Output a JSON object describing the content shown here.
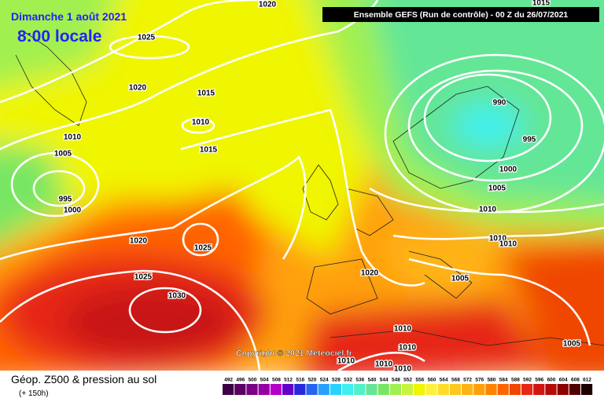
{
  "header": {
    "date": "Dimanche 1 août 2021",
    "time": "8:00 locale",
    "run": "Ensemble GEFS  (Run de contrôle)  -  00 Z du 26/07/2021"
  },
  "copyright": "Copyright © 2021 Meteociel.fr",
  "footer": {
    "title": "Géop. Z500 & pression au sol",
    "lead": "(+ 150h)"
  },
  "isobars": [
    "1020",
    "1015",
    "1025",
    "1020",
    "1015",
    "1010",
    "1015",
    "1010",
    "1005",
    "995",
    "1000",
    "1020",
    "1025",
    "1025",
    "1030",
    "1020",
    "1005",
    "990",
    "995",
    "1000",
    "1005",
    "1010",
    "1010",
    "1010",
    "1010",
    "1010",
    "1010",
    "1010",
    "1010",
    "1005"
  ],
  "scale": {
    "labels": [
      492,
      496,
      500,
      504,
      508,
      512,
      516,
      520,
      524,
      528,
      532,
      536,
      540,
      544,
      548,
      552,
      556,
      560,
      564,
      568,
      572,
      576,
      580,
      584,
      588,
      592,
      596,
      600,
      604,
      608,
      612
    ],
    "colors": [
      "#3c0046",
      "#5a0064",
      "#780082",
      "#9600a0",
      "#b400c8",
      "#6400c8",
      "#2828dc",
      "#2864f0",
      "#28a0ff",
      "#28d2ff",
      "#3cf0f0",
      "#50f0c8",
      "#64e696",
      "#78e664",
      "#a0f050",
      "#c8f53c",
      "#f0f500",
      "#fff03c",
      "#ffdc28",
      "#ffc81e",
      "#ffb414",
      "#ffa00a",
      "#ff8200",
      "#ff6400",
      "#f04600",
      "#e62814",
      "#d21414",
      "#b40a0a",
      "#8c0000",
      "#500000",
      "#1e0000"
    ]
  }
}
